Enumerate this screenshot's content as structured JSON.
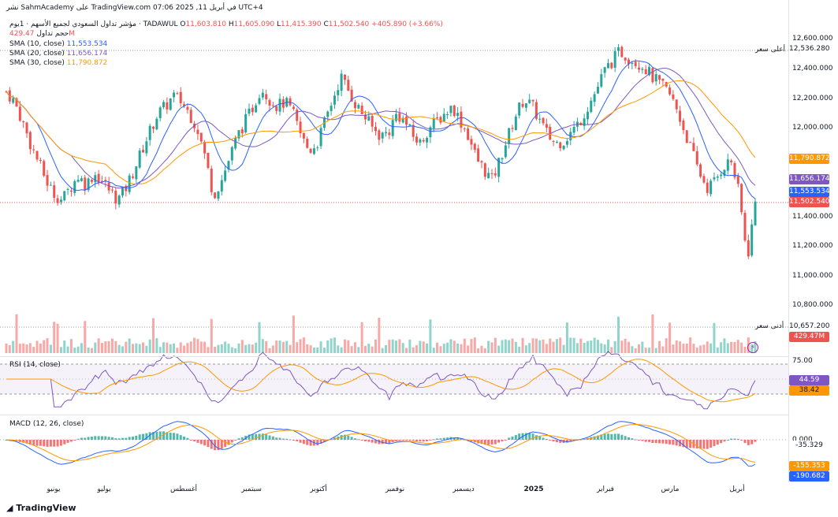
{
  "header": {
    "top_line": "نشر SahmAcademy على TradingView.com في أبريل 11, 2025 07:06 UTC+4",
    "symbol_line": "مؤشر تداول السعودي لجميع الأسهم · 1يوم · TADAWUL",
    "ohlc": {
      "o_label": "O",
      "o": "11,603.810",
      "h_label": "H",
      "h": "11,605.090",
      "l_label": "L",
      "l": "11,415.390",
      "c_label": "C",
      "c": "11,502.540",
      "change": "+405.890 (+3.66%)"
    },
    "volume_label": "حجم تداول",
    "volume_value": "429.47M",
    "sma10_label": "SMA (10, close)",
    "sma10_value": "11,553.534",
    "sma20_label": "SMA (20, close)",
    "sma20_value": "11,656.174",
    "sma30_label": "SMA (30, close)",
    "sma30_value": "11,790.872"
  },
  "price_axis": [
    "12,600.000",
    "12,400.000",
    "12,200.000",
    "12,000.000",
    "11,400.000",
    "11,200.000",
    "11,000.000",
    "10,800.000"
  ],
  "tags": {
    "high_label": "أعلى سعر",
    "high_value": "12,536.280",
    "low_label": "أدنى سعر",
    "low_value": "10,657.200",
    "sma30": "11,790.872",
    "sma20": "11,656.174",
    "sma10": "11,553.534",
    "last": "11,502.540",
    "volume": "429.47M"
  },
  "rsi": {
    "label": "RSI (14, close)",
    "v1": "44.59",
    "v2": "38.42",
    "level": "75.00"
  },
  "macd": {
    "label": "MACD (12, 26, close)",
    "hist": "-35.329",
    "macd": "-190.682",
    "signal": "-155.353",
    "zero": "0.000"
  },
  "x_labels": [
    "يونيو",
    "يوليو",
    "أغسطس",
    "سبتمبر",
    "أكتوبر",
    "نوفمبر",
    "ديسمبر",
    "2025",
    "فبراير",
    "مارس",
    "أبريل"
  ],
  "brand": "TradingView",
  "colors": {
    "up": "#26a69a",
    "down": "#ef5350",
    "sma10": "#2962ff",
    "sma20": "#7e57c2",
    "sma30": "#ff9800",
    "rsi": "#7e57c2"
  },
  "chart_data": {
    "type": "line",
    "price_closes": [
      12250,
      12180,
      12050,
      11900,
      11780,
      11650,
      11560,
      11520,
      11600,
      11680,
      11620,
      11700,
      11650,
      11580,
      11520,
      11600,
      11720,
      11850,
      11980,
      12100,
      12150,
      12220,
      12180,
      12100,
      12000,
      11800,
      11550,
      11650,
      11800,
      11950,
      12050,
      12150,
      12280,
      12200,
      12150,
      12180,
      12100,
      11950,
      11850,
      11900,
      12050,
      12200,
      12350,
      12250,
      12150,
      12080,
      12000,
      11950,
      11980,
      12100,
      12050,
      11950,
      11900,
      12000,
      12050,
      12100,
      12150,
      12050,
      11950,
      11800,
      11720,
      11650,
      11800,
      11950,
      12100,
      12200,
      12150,
      12050,
      11950,
      11900,
      11920,
      11980,
      12050,
      12150,
      12250,
      12380,
      12450,
      12520,
      12480,
      12450,
      12420,
      12350,
      12300,
      12250,
      12150,
      12000,
      11850,
      11700,
      11600,
      11650,
      11750,
      11780,
      11550,
      11120,
      11500
    ],
    "rsi_range": [
      25,
      75
    ],
    "macd_zero": 0
  }
}
